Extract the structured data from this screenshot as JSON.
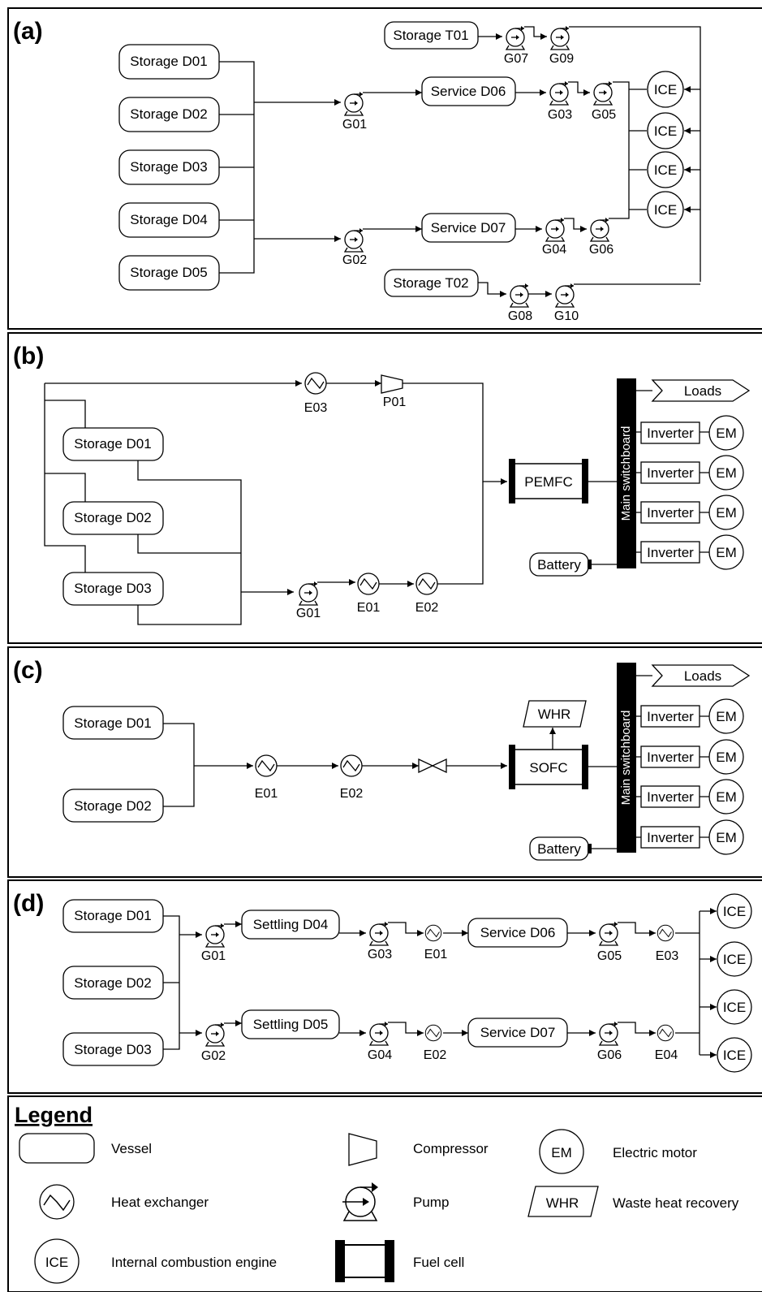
{
  "sections": {
    "a": "(a)",
    "b": "(b)",
    "c": "(c)",
    "d": "(d)"
  },
  "panel_a": {
    "storages": [
      "Storage D01",
      "Storage D02",
      "Storage D03",
      "Storage D04",
      "Storage D05"
    ],
    "storage_t01": "Storage T01",
    "storage_t02": "Storage T02",
    "service_d06": "Service D06",
    "service_d07": "Service D07",
    "ice": "ICE",
    "pumps": [
      "G01",
      "G02",
      "G03",
      "G04",
      "G05",
      "G06",
      "G07",
      "G08",
      "G09",
      "G10"
    ]
  },
  "panel_b": {
    "storages": [
      "Storage D01",
      "Storage D02",
      "Storage D03"
    ],
    "e03": "E03",
    "p01": "P01",
    "g01": "G01",
    "e01": "E01",
    "e02": "E02",
    "pemfc": "PEMFC",
    "switchboard": "Main switchboard",
    "loads": "Loads",
    "inverter": "Inverter",
    "em": "EM",
    "battery": "Battery"
  },
  "panel_c": {
    "storages": [
      "Storage D01",
      "Storage D02"
    ],
    "e01": "E01",
    "e02": "E02",
    "whr": "WHR",
    "sofc": "SOFC",
    "switchboard": "Main switchboard",
    "loads": "Loads",
    "inverter": "Inverter",
    "em": "EM",
    "battery": "Battery"
  },
  "panel_d": {
    "storages": [
      "Storage D01",
      "Storage D02",
      "Storage D03"
    ],
    "settling_d04": "Settling D04",
    "settling_d05": "Settling D05",
    "service_d06": "Service D06",
    "service_d07": "Service D07",
    "ice": "ICE",
    "labels": [
      "G01",
      "G02",
      "G03",
      "G04",
      "G05",
      "G06",
      "E01",
      "E02",
      "E03",
      "E04"
    ]
  },
  "legend": {
    "title": "Legend",
    "vessel": "Vessel",
    "compressor": "Compressor",
    "em_symbol": "EM",
    "electric_motor": "Electric motor",
    "heat_exchanger": "Heat exchanger",
    "pump": "Pump",
    "whr_symbol": "WHR",
    "waste_heat_recovery": "Waste heat recovery",
    "ice_symbol": "ICE",
    "internal_combustion_engine": "Internal combustion engine",
    "fuel_cell": "Fuel cell"
  }
}
